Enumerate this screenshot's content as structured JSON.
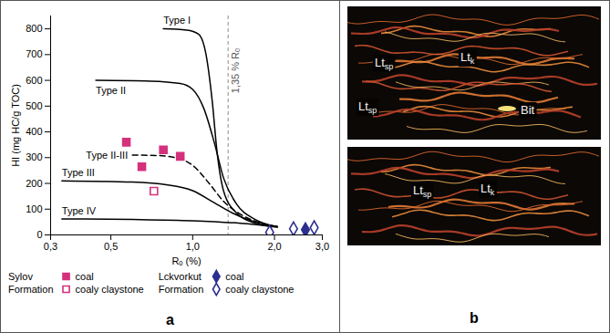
{
  "chart_data": {
    "type": "line",
    "panel_label": "a",
    "x_label": "Rₒ (%)",
    "y_label": "HI (mg HC/g TOC)",
    "log": "x",
    "xlim": [
      0.3,
      3.0
    ],
    "xticks": [
      {
        "value": 0.3,
        "label": "0,3"
      },
      {
        "value": 0.5,
        "label": "0,5"
      },
      {
        "value": 1,
        "label": "1,0"
      },
      {
        "value": 2,
        "label": "2,0"
      },
      {
        "value": 3,
        "label": "3,0"
      }
    ],
    "ylim": [
      0,
      850
    ],
    "yticks": [
      0,
      100,
      200,
      300,
      400,
      500,
      600,
      700,
      800
    ],
    "legend": "bottom",
    "annotations": [
      {
        "x": 1.35,
        "text": "1,35 % Rₒ",
        "line_style": "dashed"
      }
    ],
    "series": [
      {
        "name": "Type I",
        "type": "line",
        "color": "#000000",
        "line_style": "solid",
        "x": [
          0.78,
          0.95,
          1.05,
          1.12,
          1.18,
          1.23,
          1.3,
          1.45,
          1.7,
          2.05
        ],
        "values": [
          800,
          795,
          780,
          700,
          520,
          320,
          170,
          85,
          45,
          30
        ]
      },
      {
        "name": "Type II",
        "type": "line",
        "color": "#000000",
        "line_style": "solid",
        "x": [
          0.44,
          0.7,
          0.9,
          1.0,
          1.1,
          1.2,
          1.3,
          1.45,
          1.7,
          2.05
        ],
        "values": [
          600,
          597,
          588,
          565,
          490,
          360,
          220,
          120,
          60,
          32
        ]
      },
      {
        "name": "Type II-III",
        "type": "line",
        "color": "#000000",
        "line_style": "dashed",
        "x": [
          0.6,
          0.75,
          0.9,
          1.0,
          1.15,
          1.3,
          1.5,
          1.8,
          2.05
        ],
        "values": [
          310,
          308,
          295,
          270,
          200,
          130,
          80,
          45,
          32
        ]
      },
      {
        "name": "Type III",
        "type": "line",
        "color": "#000000",
        "line_style": "solid",
        "x": [
          0.33,
          0.6,
          0.8,
          1.0,
          1.2,
          1.4,
          1.7,
          2.05
        ],
        "values": [
          210,
          205,
          195,
          172,
          125,
          85,
          50,
          32
        ]
      },
      {
        "name": "Type IV",
        "type": "line",
        "color": "#000000",
        "line_style": "solid",
        "x": [
          0.33,
          0.6,
          1.0,
          1.5,
          2.05
        ],
        "values": [
          62,
          60,
          55,
          45,
          32
        ]
      },
      {
        "name": "coal",
        "group": "Sylov Formation",
        "type": "scatter",
        "marker": "square",
        "color": "#d4317c",
        "x": [
          0.57,
          0.65,
          0.78,
          0.9
        ],
        "values": [
          360,
          265,
          330,
          305
        ]
      },
      {
        "name": "coaly claystone",
        "group": "Sylov Formation",
        "type": "scatter",
        "marker": "square-open",
        "color": "#d4317c",
        "x": [
          0.72
        ],
        "values": [
          170
        ]
      },
      {
        "name": "coal",
        "group": "Lckvorkut Formation",
        "type": "scatter",
        "marker": "diamond",
        "color": "#2b2f8f",
        "x": [
          2.6
        ],
        "values": [
          20
        ]
      },
      {
        "name": "coaly claystone",
        "group": "Lckvorkut Formation",
        "type": "scatter",
        "marker": "diamond-open",
        "color": "#2b2f8f",
        "x": [
          1.92,
          2.35,
          2.8
        ],
        "values": [
          10,
          24,
          28
        ]
      }
    ]
  },
  "photos": {
    "panel_label": "b",
    "images": [
      {
        "labels": [
          {
            "base": "Lt",
            "sub": "sp"
          },
          {
            "base": "Lt",
            "sub": "k"
          },
          {
            "base": "Lt",
            "sub": "sp"
          },
          {
            "base": "Bit"
          }
        ]
      },
      {
        "labels": [
          {
            "base": "Lt",
            "sub": "sp"
          },
          {
            "base": "Lt",
            "sub": "k"
          }
        ]
      }
    ]
  }
}
